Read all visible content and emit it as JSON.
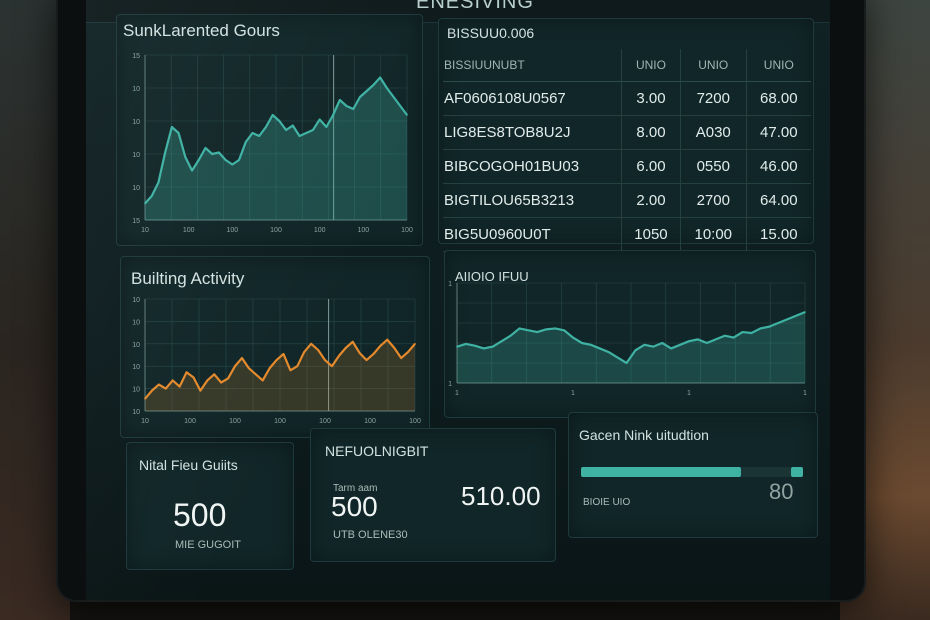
{
  "header": {
    "title": "ENESIVING"
  },
  "panels": {
    "chart1": {
      "title": "SunkLarented Gours",
      "xticks": [
        "10",
        "100",
        "100",
        "100",
        "100",
        "100",
        "100"
      ],
      "yticks": [
        "15",
        "10",
        "10",
        "10",
        "10",
        "15"
      ]
    },
    "table": {
      "title": "BISSUU0.006",
      "columns": [
        "BISSIUUNUBT",
        "UNIO",
        "UNIO",
        "UNIO"
      ],
      "rows": [
        [
          "AF0606108U0567",
          "3.00",
          "7200",
          "68.00"
        ],
        [
          "LIG8ES8TOB8U2J",
          "8.00",
          "A030",
          "47.00"
        ],
        [
          "BIBCOGOH01BU03",
          "6.00",
          "0550",
          "46.00"
        ],
        [
          "BIGTILOU65B3213",
          "2.00",
          "2700",
          "64.00"
        ],
        [
          "BIG5U0960U0T",
          "1050",
          "10:00",
          "15.00"
        ]
      ]
    },
    "chart2": {
      "title": "Builting Activity",
      "xticks": [
        "10",
        "100",
        "100",
        "100",
        "100",
        "100",
        "100"
      ],
      "yticks": [
        "10",
        "10",
        "10",
        "10",
        "10",
        "10"
      ]
    },
    "chart3": {
      "title": "AIIOIO IFUU",
      "xticks": [
        "1",
        "1",
        "1",
        "1"
      ],
      "yticks": [
        "1",
        "1"
      ]
    },
    "stat1": {
      "title": "Nital Fieu Guiits",
      "value": "500",
      "caption": "MIE GUGOIT"
    },
    "stat2": {
      "title": "NEFUOLNIGBIT",
      "value_label": "Tarm aam",
      "value": "500",
      "caption": "UTB OLENE30",
      "right_value": "510.00"
    },
    "progress": {
      "title": "Gacen Nink uitudtion",
      "caption": "BIOIE UIO",
      "value_text": "80",
      "level_percent": 72
    }
  },
  "colors": {
    "accent": "#3fb2a4",
    "orange": "#e48a2c",
    "panel": "#112628"
  },
  "chart_data": [
    {
      "type": "area",
      "title": "SunkLarented Gours",
      "x": [
        1,
        2,
        3,
        4,
        5,
        6,
        7,
        8,
        9,
        10,
        11,
        12,
        13,
        14,
        15,
        16,
        17,
        18,
        19,
        20,
        21,
        22,
        23,
        24,
        25,
        26,
        27,
        28,
        29,
        30,
        31,
        32,
        33,
        34,
        35,
        36,
        37,
        38,
        39,
        40
      ],
      "series": [
        {
          "values": [
            11,
            16,
            25,
            45,
            62,
            58,
            42,
            33,
            40,
            48,
            44,
            45,
            40,
            37,
            40,
            52,
            58,
            56,
            62,
            70,
            66,
            60,
            63,
            56,
            58,
            60,
            67,
            62,
            70,
            80,
            76,
            74,
            82,
            86,
            90,
            95,
            88,
            82,
            76,
            70
          ]
        }
      ],
      "ylim": [
        0,
        110
      ]
    },
    {
      "type": "area",
      "title": "Builting Activity",
      "x": [
        1,
        2,
        3,
        4,
        5,
        6,
        7,
        8,
        9,
        10,
        11,
        12,
        13,
        14,
        15,
        16,
        17,
        18,
        19,
        20,
        21,
        22,
        23,
        24,
        25,
        26,
        27,
        28,
        29,
        30,
        31,
        32,
        33,
        34,
        35,
        36,
        37,
        38,
        39,
        40
      ],
      "series": [
        {
          "values": [
            12,
            20,
            26,
            22,
            30,
            24,
            38,
            33,
            20,
            30,
            36,
            28,
            32,
            44,
            52,
            42,
            36,
            30,
            42,
            50,
            56,
            40,
            44,
            58,
            66,
            60,
            50,
            44,
            54,
            62,
            68,
            57,
            50,
            56,
            64,
            70,
            62,
            52,
            58,
            66
          ]
        }
      ],
      "ylim": [
        0,
        110
      ]
    },
    {
      "type": "area",
      "title": "AIIOIO IFUU",
      "x": [
        1,
        2,
        3,
        4,
        5,
        6,
        7,
        8,
        9,
        10,
        11,
        12,
        13,
        14,
        15,
        16,
        17,
        18,
        19,
        20,
        21,
        22,
        23,
        24,
        25,
        26,
        27,
        28,
        29,
        30,
        31,
        32,
        33,
        34,
        35,
        36,
        37,
        38,
        39,
        40
      ],
      "series": [
        {
          "values": [
            40,
            43,
            41,
            38,
            40,
            46,
            52,
            60,
            58,
            56,
            59,
            60,
            58,
            50,
            44,
            42,
            38,
            34,
            28,
            22,
            36,
            42,
            40,
            44,
            38,
            42,
            46,
            48,
            44,
            48,
            52,
            50,
            56,
            55,
            60,
            62,
            66,
            70,
            74,
            78
          ]
        }
      ],
      "ylim": [
        0,
        110
      ]
    }
  ]
}
